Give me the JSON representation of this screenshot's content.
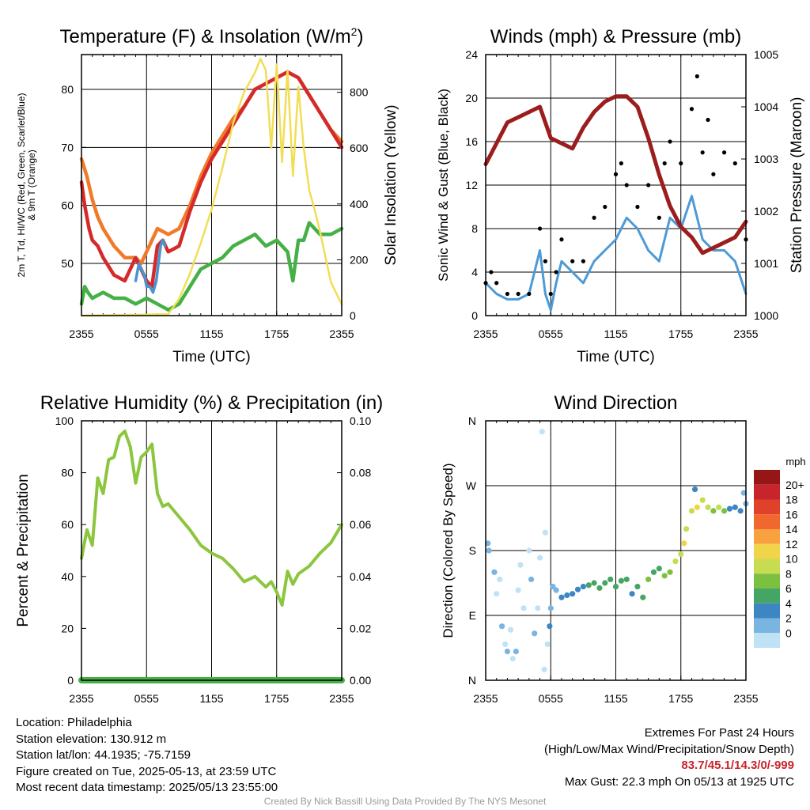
{
  "footer": {
    "location": "Location: Philadelphia",
    "elevation": "Station elevation: 130.912 m",
    "latlon": "Station lat/lon: 44.1935; -75.7159",
    "created": "Figure created on Tue, 2025-05-13, at 23:59 UTC",
    "recent": "Most recent data timestamp: 2025/05/13 23:55:00",
    "extremes_title": "Extremes For Past 24 Hours",
    "extremes_legend": "(High/Low/Max Wind/Precipitation/Snow Depth)",
    "extremes_values": "83.7/45.1/14.3/0/-999",
    "max_gust": "Max Gust: 22.3 mph On 05/13 at 1925 UTC",
    "credit": "Created By Nick Bassill Using Data Provided By The NYS Mesonet"
  },
  "colors": {
    "temp": "#d42a2a",
    "dewpoint": "#45b045",
    "windchill": "#4a94d0",
    "temp9m": "#f07a2a",
    "solar": "#f2de55",
    "wind": "#4d9ad6",
    "gust": "#000000",
    "pressure": "#9b1d1d",
    "rh": "#8cc63f",
    "precip": "#45b045"
  },
  "chart_data": [
    {
      "type": "line",
      "title": "Temperature (F) & Insolation (W/m2)",
      "xlabel": "Time (UTC)",
      "ylabel": "2m T, Td, HI/WC (Red, Green, Scarlet/Blue) & 9m T (Orange)",
      "ylabel2": "Solar Insolation (Yellow)",
      "xticks": [
        "2355",
        "0555",
        "1155",
        "1755",
        "2355"
      ],
      "xlim": [
        0,
        24
      ],
      "ylim": [
        41,
        86
      ],
      "yticks": [
        50,
        60,
        70,
        80
      ],
      "y2lim": [
        0,
        935
      ],
      "y2ticks": [
        0,
        200,
        400,
        600,
        800
      ],
      "series": [
        {
          "name": "9m T",
          "color": "#f07a2a",
          "axis": "left",
          "x": [
            0,
            0.5,
            1,
            1.5,
            2,
            3,
            4,
            5,
            5.5,
            6,
            7,
            8,
            9,
            10,
            11,
            12,
            13,
            14,
            15,
            16,
            17,
            18,
            19,
            20,
            21,
            22,
            23,
            24
          ],
          "y": [
            68,
            65,
            61,
            58,
            56,
            53,
            51,
            51,
            50,
            52,
            56,
            55,
            56,
            60,
            65,
            69,
            72,
            75,
            77,
            80,
            81,
            82,
            83,
            82,
            79,
            76,
            73,
            71
          ]
        },
        {
          "name": "2m T",
          "color": "#d42a2a",
          "axis": "left",
          "x": [
            0,
            0.3,
            0.7,
            1,
            1.5,
            2,
            3,
            4,
            5,
            5.5,
            6,
            6.5,
            7,
            7.5,
            8,
            9,
            10,
            11,
            12,
            13,
            14,
            15,
            16,
            17,
            18,
            19,
            20,
            21,
            22,
            23,
            24
          ],
          "y": [
            64,
            60,
            56,
            54,
            53,
            51,
            48,
            47,
            51,
            49,
            47,
            46,
            53,
            54,
            52,
            53,
            59,
            64,
            68,
            71,
            74,
            77,
            80,
            81,
            82,
            83,
            82,
            79,
            76,
            73,
            70
          ]
        },
        {
          "name": "HI/WC",
          "color": "#4a94d0",
          "axis": "left",
          "x": [
            5,
            5.3,
            5.5,
            5.8,
            6.0,
            6.3,
            6.6,
            6.9,
            7.1,
            7.3,
            7.5,
            7.7
          ],
          "y": [
            47,
            50,
            49,
            48,
            46,
            46,
            45,
            47,
            50,
            53,
            54,
            53
          ]
        },
        {
          "name": "2m Td",
          "color": "#45b045",
          "axis": "left",
          "x": [
            0,
            0.3,
            0.6,
            1,
            2,
            3,
            4,
            5,
            6,
            7,
            8,
            9,
            10,
            11,
            12,
            13,
            14,
            15,
            16,
            17,
            18,
            19,
            19.5,
            20,
            20.5,
            21,
            22,
            23,
            24
          ],
          "y": [
            43,
            46,
            45,
            44,
            45,
            44,
            44,
            43,
            44,
            43,
            42,
            43,
            46,
            49,
            50,
            51,
            53,
            54,
            55,
            53,
            54,
            52,
            47,
            54,
            54,
            57,
            55,
            55,
            56
          ]
        },
        {
          "name": "Solar Insolation",
          "color": "#f2de55",
          "axis": "right",
          "x": [
            0,
            8,
            9,
            10,
            11,
            12,
            13,
            14,
            15,
            16,
            16.5,
            17,
            17.5,
            18,
            18.5,
            19,
            19.5,
            20,
            20.5,
            21,
            21.5,
            22,
            23,
            24
          ],
          "y": [
            0,
            5,
            60,
            150,
            260,
            380,
            530,
            690,
            800,
            870,
            920,
            880,
            600,
            900,
            550,
            880,
            500,
            820,
            600,
            450,
            380,
            300,
            120,
            40
          ]
        }
      ]
    },
    {
      "type": "line",
      "title": "Winds (mph) & Pressure (mb)",
      "xlabel": "Time (UTC)",
      "ylabel": "Sonic Wind & Gust (Blue, Black)",
      "ylabel2": "Station Pressure (Maroon)",
      "xticks": [
        "2355",
        "0555",
        "1155",
        "1755",
        "2355"
      ],
      "xlim": [
        0,
        24
      ],
      "ylim": [
        0,
        24
      ],
      "yticks": [
        0,
        4,
        8,
        12,
        16,
        20,
        24
      ],
      "y2lim": [
        1000,
        1005
      ],
      "y2ticks": [
        1000,
        1001,
        1002,
        1003,
        1004,
        1005
      ],
      "series": [
        {
          "name": "Sonic Wind",
          "color": "#4d9ad6",
          "axis": "left",
          "x": [
            0,
            1,
            2,
            3,
            4,
            5,
            5.5,
            6,
            6.5,
            7,
            8,
            9,
            10,
            11,
            12,
            13,
            14,
            15,
            16,
            17,
            18,
            19,
            20,
            21,
            22,
            23,
            24
          ],
          "y": [
            3,
            2,
            1.5,
            1.5,
            2,
            6,
            2,
            0.5,
            3,
            5,
            4,
            3,
            5,
            6,
            7,
            9,
            8,
            6,
            5,
            9,
            8,
            11,
            7,
            6,
            6,
            5,
            2
          ]
        },
        {
          "name": "Gust",
          "color": "#000000",
          "axis": "left",
          "points": true,
          "x": [
            0,
            0.5,
            1,
            2,
            3,
            4,
            5,
            5.5,
            6,
            6.5,
            7,
            8,
            9,
            10,
            11,
            12,
            12.5,
            13,
            14,
            15,
            16,
            16.5,
            17,
            18,
            19,
            19.5,
            20,
            20.5,
            21,
            22,
            23,
            24
          ],
          "y": [
            3,
            4,
            3,
            2,
            2,
            2,
            8,
            5,
            2,
            4,
            7,
            5,
            5,
            9,
            10,
            13,
            14,
            12,
            10,
            12,
            9,
            14,
            16,
            14,
            19,
            22,
            15,
            18,
            13,
            15,
            14,
            7
          ]
        },
        {
          "name": "Station Pressure",
          "color": "#9b1d1d",
          "axis": "right",
          "x": [
            0,
            1,
            2,
            3,
            4,
            5,
            6,
            7,
            8,
            9,
            10,
            11,
            12,
            13,
            14,
            15,
            16,
            17,
            18,
            19,
            20,
            21,
            22,
            23,
            24
          ],
          "y": [
            1002.9,
            1003.3,
            1003.7,
            1003.8,
            1003.9,
            1004.0,
            1003.4,
            1003.3,
            1003.2,
            1003.6,
            1003.9,
            1004.1,
            1004.2,
            1004.2,
            1004.0,
            1003.4,
            1002.7,
            1002.1,
            1001.7,
            1001.5,
            1001.2,
            1001.3,
            1001.4,
            1001.5,
            1001.8
          ]
        }
      ]
    },
    {
      "type": "line",
      "title": "Relative Humidity (%) & Precipitation (in)",
      "xlabel": "",
      "ylabel": "Percent & Precipitation",
      "xticks": [
        "2355",
        "0555",
        "1155",
        "1755",
        "2355"
      ],
      "xlim": [
        0,
        24
      ],
      "ylim": [
        0,
        100
      ],
      "yticks": [
        0,
        20,
        40,
        60,
        80,
        100
      ],
      "y2lim": [
        0,
        0.1
      ],
      "y2ticks": [
        "0.00",
        "0.02",
        "0.04",
        "0.06",
        "0.08",
        "0.10"
      ],
      "series": [
        {
          "name": "RH",
          "color": "#8cc63f",
          "axis": "left",
          "x": [
            0,
            0.5,
            1,
            1.5,
            2,
            2.5,
            3,
            3.5,
            4,
            4.5,
            5,
            5.5,
            6,
            6.5,
            7,
            7.5,
            8,
            9,
            10,
            11,
            12,
            13,
            14,
            15,
            16,
            17,
            17.5,
            18,
            18.5,
            19,
            19.5,
            20,
            21,
            22,
            23,
            24
          ],
          "y": [
            47,
            58,
            52,
            78,
            72,
            85,
            86,
            94,
            96,
            90,
            76,
            86,
            88,
            91,
            72,
            67,
            68,
            63,
            58,
            52,
            49,
            47,
            43,
            38,
            40,
            36,
            38,
            34,
            29,
            42,
            37,
            41,
            44,
            49,
            53,
            60
          ]
        },
        {
          "name": "Precipitation",
          "color": "#45b045",
          "axis": "right",
          "x": [
            0,
            24
          ],
          "y": [
            0,
            0
          ]
        }
      ]
    },
    {
      "type": "scatter",
      "title": "Wind Direction",
      "ylabel": "Direction (Colored By Speed)",
      "xticks": [
        "2355",
        "0555",
        "1155",
        "1755",
        "2355"
      ],
      "xlim": [
        0,
        24
      ],
      "ylim": [
        0,
        360
      ],
      "yticks": [
        "N",
        "E",
        "S",
        "W",
        "N"
      ],
      "colorbar_title": "mph",
      "colorbar_labels": [
        "20+",
        "18",
        "16",
        "14",
        "12",
        "10",
        "8",
        "6",
        "4",
        "2",
        "0"
      ],
      "colorbar_colors": [
        "#961616",
        "#c8242b",
        "#e0412a",
        "#f0682e",
        "#f7a13f",
        "#f0d54b",
        "#c8dc52",
        "#7cc042",
        "#45a565",
        "#3e86c3",
        "#7ab4e0",
        "#bfe3f5"
      ],
      "points": [
        {
          "x": 0.2,
          "y": 190,
          "s": 2
        },
        {
          "x": 0.3,
          "y": 180,
          "s": 3
        },
        {
          "x": 0.8,
          "y": 150,
          "s": 2
        },
        {
          "x": 1.0,
          "y": 120,
          "s": 1
        },
        {
          "x": 1.3,
          "y": 140,
          "s": 1
        },
        {
          "x": 1.5,
          "y": 75,
          "s": 2
        },
        {
          "x": 1.8,
          "y": 50,
          "s": 1
        },
        {
          "x": 2.0,
          "y": 40,
          "s": 2
        },
        {
          "x": 2.3,
          "y": 70,
          "s": 1
        },
        {
          "x": 2.5,
          "y": 30,
          "s": 1
        },
        {
          "x": 2.8,
          "y": 40,
          "s": 2
        },
        {
          "x": 3.0,
          "y": 125,
          "s": 1
        },
        {
          "x": 3.2,
          "y": 160,
          "s": 1
        },
        {
          "x": 3.5,
          "y": 100,
          "s": 0
        },
        {
          "x": 4.0,
          "y": 180,
          "s": 1
        },
        {
          "x": 4.2,
          "y": 140,
          "s": 2
        },
        {
          "x": 4.5,
          "y": 65,
          "s": 2
        },
        {
          "x": 4.8,
          "y": 100,
          "s": 1
        },
        {
          "x": 5.0,
          "y": 170,
          "s": 1
        },
        {
          "x": 5.2,
          "y": 345,
          "s": 1
        },
        {
          "x": 5.4,
          "y": 15,
          "s": 0
        },
        {
          "x": 5.5,
          "y": 205,
          "s": 1
        },
        {
          "x": 5.7,
          "y": 50,
          "s": 1
        },
        {
          "x": 5.9,
          "y": 75,
          "s": 4
        },
        {
          "x": 6.0,
          "y": 100,
          "s": 2
        },
        {
          "x": 6.2,
          "y": 130,
          "s": 3
        },
        {
          "x": 6.5,
          "y": 125,
          "s": 3
        },
        {
          "x": 7.0,
          "y": 115,
          "s": 4
        },
        {
          "x": 7.5,
          "y": 118,
          "s": 4
        },
        {
          "x": 8.0,
          "y": 120,
          "s": 5
        },
        {
          "x": 8.5,
          "y": 126,
          "s": 5
        },
        {
          "x": 9.0,
          "y": 130,
          "s": 5
        },
        {
          "x": 9.5,
          "y": 132,
          "s": 6
        },
        {
          "x": 10.0,
          "y": 135,
          "s": 7
        },
        {
          "x": 10.5,
          "y": 128,
          "s": 6
        },
        {
          "x": 11.0,
          "y": 135,
          "s": 7
        },
        {
          "x": 11.5,
          "y": 140,
          "s": 6
        },
        {
          "x": 12.0,
          "y": 130,
          "s": 6
        },
        {
          "x": 12.5,
          "y": 138,
          "s": 7
        },
        {
          "x": 13.0,
          "y": 140,
          "s": 6
        },
        {
          "x": 13.5,
          "y": 120,
          "s": 5
        },
        {
          "x": 14.0,
          "y": 130,
          "s": 6
        },
        {
          "x": 14.5,
          "y": 115,
          "s": 7
        },
        {
          "x": 15.0,
          "y": 140,
          "s": 8
        },
        {
          "x": 15.5,
          "y": 150,
          "s": 6
        },
        {
          "x": 16.0,
          "y": 155,
          "s": 7
        },
        {
          "x": 16.5,
          "y": 145,
          "s": 8
        },
        {
          "x": 17.0,
          "y": 150,
          "s": 9
        },
        {
          "x": 17.5,
          "y": 165,
          "s": 10
        },
        {
          "x": 18.0,
          "y": 175,
          "s": 11
        },
        {
          "x": 18.3,
          "y": 190,
          "s": 12
        },
        {
          "x": 18.5,
          "y": 210,
          "s": 10
        },
        {
          "x": 19.0,
          "y": 235,
          "s": 11
        },
        {
          "x": 19.3,
          "y": 265,
          "s": 4
        },
        {
          "x": 19.5,
          "y": 240,
          "s": 12
        },
        {
          "x": 20.0,
          "y": 250,
          "s": 10
        },
        {
          "x": 20.5,
          "y": 240,
          "s": 11
        },
        {
          "x": 21.0,
          "y": 235,
          "s": 9
        },
        {
          "x": 21.5,
          "y": 240,
          "s": 10
        },
        {
          "x": 22.0,
          "y": 235,
          "s": 8
        },
        {
          "x": 22.5,
          "y": 238,
          "s": 5
        },
        {
          "x": 23.0,
          "y": 240,
          "s": 4
        },
        {
          "x": 23.5,
          "y": 235,
          "s": 4
        },
        {
          "x": 24.0,
          "y": 245,
          "s": 3
        },
        {
          "x": 23.8,
          "y": 260,
          "s": 3
        }
      ]
    }
  ]
}
